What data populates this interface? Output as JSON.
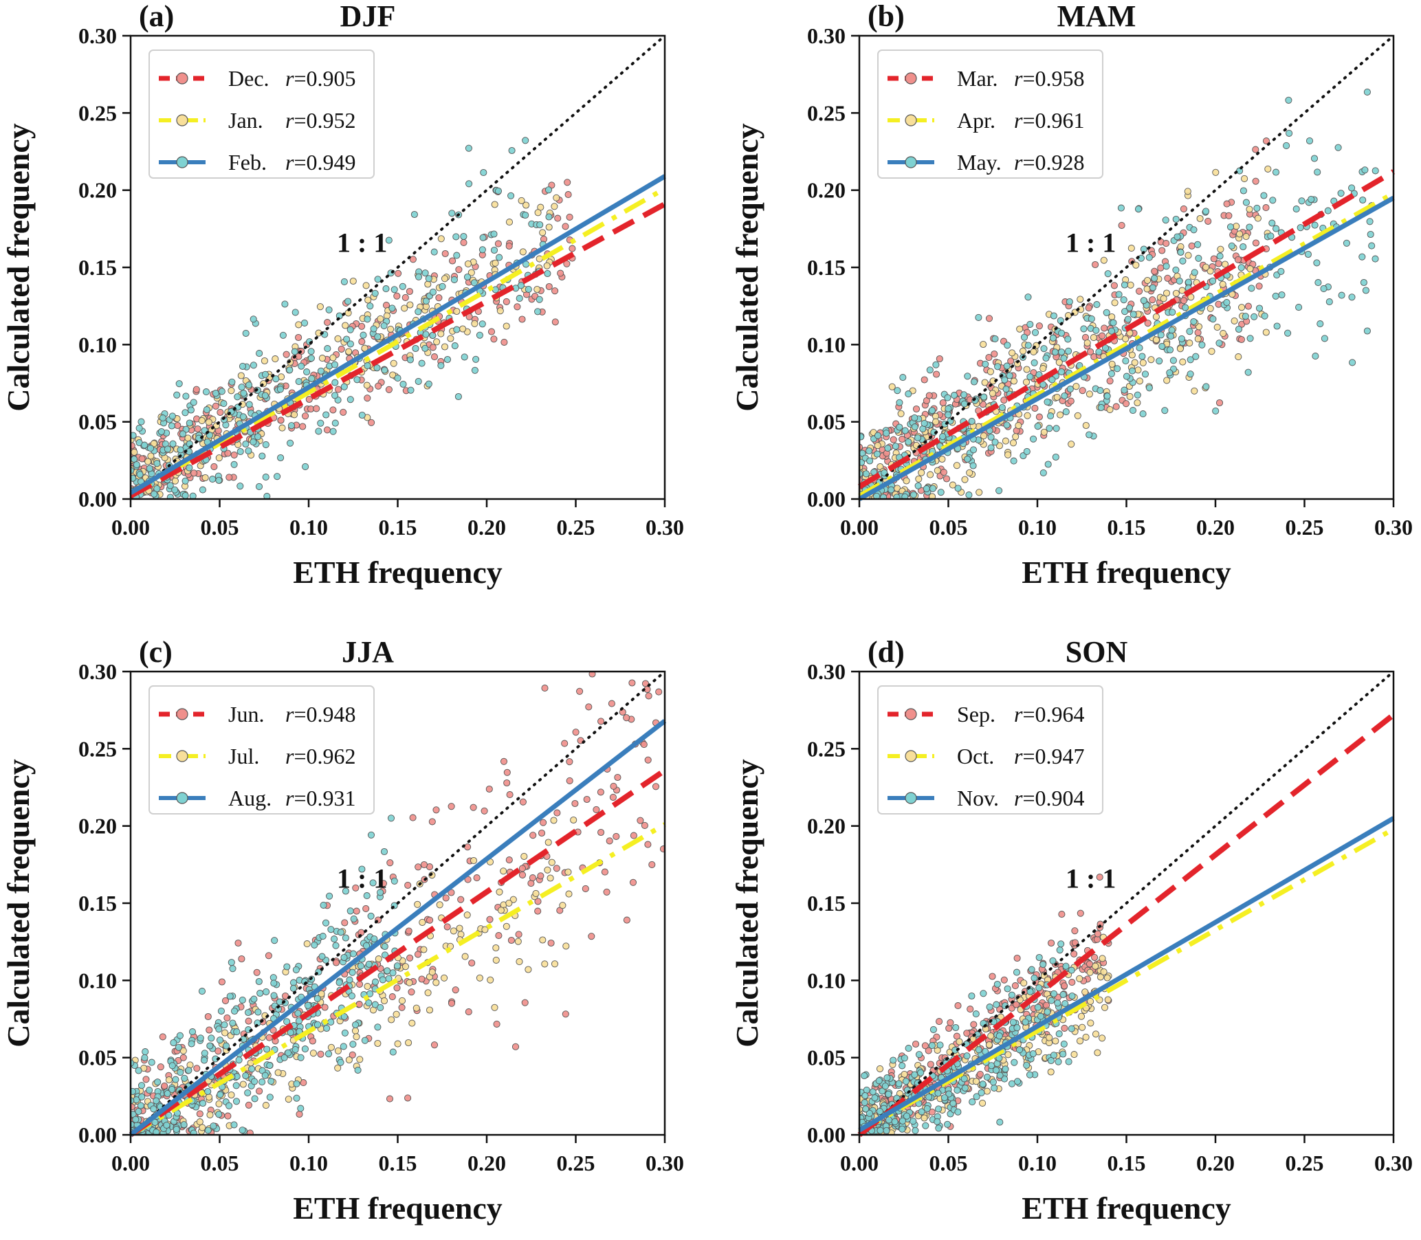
{
  "figure": {
    "x_axis_label": "ETH frequency",
    "y_axis_label": "Calculated frequency",
    "one_to_one_label": "1 : 1"
  },
  "colors": {
    "red": "#e3242b",
    "yellow": "#f5ef22",
    "blue": "#3a7ebc",
    "red_marker": "#f0908c",
    "yellow_marker": "#f8df9a",
    "blue_marker": "#7fd2d2",
    "one_to_one": "#111111"
  },
  "chart_data": [
    {
      "type": "scatter",
      "panel_label": "(a)",
      "title": "DJF",
      "xlabel": "ETH frequency",
      "ylabel": "Calculated frequency",
      "xlim": [
        0,
        0.3
      ],
      "ylim": [
        0,
        0.3
      ],
      "xticks": [
        "0.00",
        "0.05",
        "0.10",
        "0.15",
        "0.20",
        "0.25",
        "0.30"
      ],
      "yticks": [
        "0.00",
        "0.05",
        "0.10",
        "0.15",
        "0.20",
        "0.25",
        "0.30"
      ],
      "legend_position": "top-left",
      "one_to_one_label_at": [
        0.13,
        0.16
      ],
      "series": [
        {
          "name": "Dec.",
          "r_label": "r",
          "r_value": "=0.905",
          "style": "dashed",
          "color_key": "red",
          "fit": [
            [
              0,
              0.002
            ],
            [
              0.3,
              0.191
            ]
          ],
          "cloud": {
            "x_max": 0.25,
            "center_slope": 0.63,
            "intercept": 0.012,
            "spread": 0.018,
            "count": 260
          }
        },
        {
          "name": "Jan.",
          "r_label": "r",
          "r_value": "=0.952",
          "style": "dashdot",
          "color_key": "yellow",
          "fit": [
            [
              0,
              0.003
            ],
            [
              0.3,
              0.201
            ]
          ],
          "cloud": {
            "x_max": 0.24,
            "center_slope": 0.66,
            "intercept": 0.012,
            "spread": 0.016,
            "count": 260
          }
        },
        {
          "name": "Feb.",
          "r_label": "r",
          "r_value": "=0.949",
          "style": "solid",
          "color_key": "blue",
          "fit": [
            [
              0,
              0.004
            ],
            [
              0.3,
              0.209
            ]
          ],
          "cloud": {
            "x_max": 0.24,
            "center_slope": 0.68,
            "intercept": 0.01,
            "spread": 0.024,
            "count": 330
          }
        }
      ]
    },
    {
      "type": "scatter",
      "panel_label": "(b)",
      "title": "MAM",
      "xlabel": "ETH frequency",
      "ylabel": "Calculated frequency",
      "xlim": [
        0,
        0.3
      ],
      "ylim": [
        0,
        0.3
      ],
      "xticks": [
        "0.00",
        "0.05",
        "0.10",
        "0.15",
        "0.20",
        "0.25",
        "0.30"
      ],
      "yticks": [
        "0.00",
        "0.05",
        "0.10",
        "0.15",
        "0.20",
        "0.25",
        "0.30"
      ],
      "legend_position": "top-left",
      "one_to_one_label_at": [
        0.13,
        0.16
      ],
      "series": [
        {
          "name": "Mar.",
          "r_label": "r",
          "r_value": "=0.958",
          "style": "dashed",
          "color_key": "red",
          "fit": [
            [
              0,
              0.008
            ],
            [
              0.3,
              0.212
            ]
          ],
          "cloud": {
            "x_max": 0.23,
            "center_slope": 0.68,
            "intercept": 0.012,
            "spread": 0.022,
            "count": 320
          }
        },
        {
          "name": "Apr.",
          "r_label": "r",
          "r_value": "=0.961",
          "style": "dashdot",
          "color_key": "yellow",
          "fit": [
            [
              0,
              0.002
            ],
            [
              0.3,
              0.198
            ]
          ],
          "cloud": {
            "x_max": 0.23,
            "center_slope": 0.64,
            "intercept": 0.01,
            "spread": 0.02,
            "count": 320
          }
        },
        {
          "name": "May.",
          "r_label": "r",
          "r_value": "=0.928",
          "style": "solid",
          "color_key": "blue",
          "fit": [
            [
              0,
              0.0
            ],
            [
              0.3,
              0.195
            ]
          ],
          "cloud": {
            "x_max": 0.29,
            "center_slope": 0.62,
            "intercept": 0.01,
            "spread": 0.026,
            "count": 420
          }
        }
      ]
    },
    {
      "type": "scatter",
      "panel_label": "(c)",
      "title": "JJA",
      "xlabel": "ETH frequency",
      "ylabel": "Calculated frequency",
      "xlim": [
        0,
        0.3
      ],
      "ylim": [
        0,
        0.3
      ],
      "xticks": [
        "0.00",
        "0.05",
        "0.10",
        "0.15",
        "0.20",
        "0.25",
        "0.30"
      ],
      "yticks": [
        "0.00",
        "0.05",
        "0.10",
        "0.15",
        "0.20",
        "0.25",
        "0.30"
      ],
      "legend_position": "top-left",
      "one_to_one_label_at": [
        0.13,
        0.16
      ],
      "series": [
        {
          "name": "Jun.",
          "r_label": "r",
          "r_value": "=0.948",
          "style": "dashed",
          "color_key": "red",
          "fit": [
            [
              0,
              0.0
            ],
            [
              0.3,
              0.236
            ]
          ],
          "cloud": {
            "x_max": 0.3,
            "center_slope": 0.78,
            "intercept": 0.005,
            "spread": 0.03,
            "count": 300
          }
        },
        {
          "name": "Jul.",
          "r_label": "r",
          "r_value": "=0.962",
          "style": "dashdot",
          "color_key": "yellow",
          "fit": [
            [
              0,
              0.0
            ],
            [
              0.3,
              0.201
            ]
          ],
          "cloud": {
            "x_max": 0.25,
            "center_slope": 0.66,
            "intercept": 0.003,
            "spread": 0.018,
            "count": 220
          }
        },
        {
          "name": "Aug.",
          "r_label": "r",
          "r_value": "=0.931",
          "style": "solid",
          "color_key": "blue",
          "fit": [
            [
              0,
              0.0
            ],
            [
              0.3,
              0.268
            ]
          ],
          "cloud": {
            "x_max": 0.15,
            "center_slope": 0.82,
            "intercept": 0.003,
            "spread": 0.025,
            "count": 380
          }
        }
      ]
    },
    {
      "type": "scatter",
      "panel_label": "(d)",
      "title": "SON",
      "xlabel": "ETH frequency",
      "ylabel": "Calculated frequency",
      "xlim": [
        0,
        0.3
      ],
      "ylim": [
        0,
        0.3
      ],
      "xticks": [
        "0.00",
        "0.05",
        "0.10",
        "0.15",
        "0.20",
        "0.25",
        "0.30"
      ],
      "yticks": [
        "0.00",
        "0.05",
        "0.10",
        "0.15",
        "0.20",
        "0.25",
        "0.30"
      ],
      "legend_position": "top-left",
      "one_to_one_label_at": [
        0.13,
        0.16
      ],
      "series": [
        {
          "name": "Sep.",
          "r_label": "r",
          "r_value": "=0.964",
          "style": "dashed",
          "color_key": "red",
          "fit": [
            [
              0,
              0.0
            ],
            [
              0.3,
              0.272
            ]
          ],
          "cloud": {
            "x_max": 0.14,
            "center_slope": 0.88,
            "intercept": 0.003,
            "spread": 0.016,
            "count": 300
          }
        },
        {
          "name": "Oct.",
          "r_label": "r",
          "r_value": "=0.947",
          "style": "dashdot",
          "color_key": "yellow",
          "fit": [
            [
              0,
              0.002
            ],
            [
              0.3,
              0.198
            ]
          ],
          "cloud": {
            "x_max": 0.14,
            "center_slope": 0.68,
            "intercept": 0.004,
            "spread": 0.014,
            "count": 240
          }
        },
        {
          "name": "Nov.",
          "r_label": "r",
          "r_value": "=0.904",
          "style": "solid",
          "color_key": "blue",
          "fit": [
            [
              0,
              0.003
            ],
            [
              0.3,
              0.205
            ]
          ],
          "cloud": {
            "x_max": 0.12,
            "center_slope": 0.7,
            "intercept": 0.003,
            "spread": 0.018,
            "count": 320
          }
        }
      ]
    }
  ]
}
